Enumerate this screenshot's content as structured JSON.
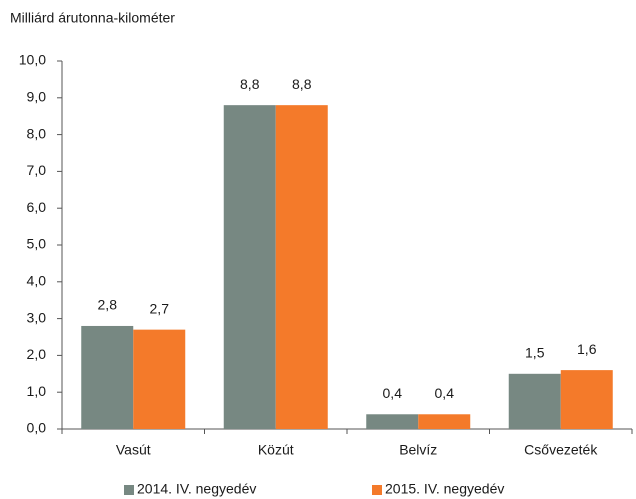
{
  "chart_data": {
    "type": "bar",
    "title": "Milliárd árutonna-kilométer",
    "categories": [
      "Vasút",
      "Közút",
      "Belvíz",
      "Csővezeték"
    ],
    "series": [
      {
        "name": "2014. IV. negyedév",
        "color": "#778882",
        "values": [
          2.8,
          8.8,
          0.4,
          1.5
        ],
        "value_labels": [
          "2,8",
          "8,8",
          "0,4",
          "1,5"
        ]
      },
      {
        "name": "2015. IV. negyedév",
        "color": "#f47a2a",
        "values": [
          2.7,
          8.8,
          0.4,
          1.6
        ],
        "value_labels": [
          "2,7",
          "8,8",
          "0,4",
          "1,6"
        ]
      }
    ],
    "ylim": [
      0,
      10
    ],
    "yticks": [
      {
        "value": 0,
        "label": "0,0"
      },
      {
        "value": 1,
        "label": "1,0"
      },
      {
        "value": 2,
        "label": "2,0"
      },
      {
        "value": 3,
        "label": "3,0"
      },
      {
        "value": 4,
        "label": "4,0"
      },
      {
        "value": 5,
        "label": "5,0"
      },
      {
        "value": 6,
        "label": "6,0"
      },
      {
        "value": 7,
        "label": "7,0"
      },
      {
        "value": 8,
        "label": "8,0"
      },
      {
        "value": 9,
        "label": "9,0"
      },
      {
        "value": 10,
        "label": "10,0"
      }
    ],
    "grid": false,
    "legend": "bottom"
  }
}
